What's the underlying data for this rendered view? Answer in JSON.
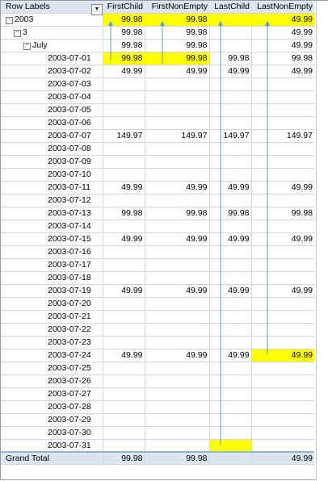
{
  "headers": {
    "row_labels": "Row Labels",
    "first_child": "FirstChild",
    "first_non_empty": "FirstNonEmpty",
    "last_child": "LastChild",
    "last_non_empty": "LastNonEmpty"
  },
  "year": {
    "label": "2003",
    "first_child": "99.98",
    "first_non_empty": "99.98",
    "last_child": "",
    "last_non_empty": "49.99"
  },
  "quarter": {
    "label": "3",
    "first_child": "99.98",
    "first_non_empty": "99.98",
    "last_child": "",
    "last_non_empty": "49.99"
  },
  "month": {
    "label": "July",
    "first_child": "99.98",
    "first_non_empty": "99.98",
    "last_child": "",
    "last_non_empty": "49.99"
  },
  "rows": [
    {
      "date": "2003-07-01",
      "fc": "99.98",
      "fne": "99.98",
      "lc": "99.98",
      "lne": "99.98"
    },
    {
      "date": "2003-07-02",
      "fc": "49.99",
      "fne": "49.99",
      "lc": "49.99",
      "lne": "49.99"
    },
    {
      "date": "2003-07-03",
      "fc": "",
      "fne": "",
      "lc": "",
      "lne": ""
    },
    {
      "date": "2003-07-04",
      "fc": "",
      "fne": "",
      "lc": "",
      "lne": ""
    },
    {
      "date": "2003-07-05",
      "fc": "",
      "fne": "",
      "lc": "",
      "lne": ""
    },
    {
      "date": "2003-07-06",
      "fc": "",
      "fne": "",
      "lc": "",
      "lne": ""
    },
    {
      "date": "2003-07-07",
      "fc": "149.97",
      "fne": "149.97",
      "lc": "149.97",
      "lne": "149.97"
    },
    {
      "date": "2003-07-08",
      "fc": "",
      "fne": "",
      "lc": "",
      "lne": ""
    },
    {
      "date": "2003-07-09",
      "fc": "",
      "fne": "",
      "lc": "",
      "lne": ""
    },
    {
      "date": "2003-07-10",
      "fc": "",
      "fne": "",
      "lc": "",
      "lne": ""
    },
    {
      "date": "2003-07-11",
      "fc": "49.99",
      "fne": "49.99",
      "lc": "49.99",
      "lne": "49.99"
    },
    {
      "date": "2003-07-12",
      "fc": "",
      "fne": "",
      "lc": "",
      "lne": ""
    },
    {
      "date": "2003-07-13",
      "fc": "99.98",
      "fne": "99.98",
      "lc": "99.98",
      "lne": "99.98"
    },
    {
      "date": "2003-07-14",
      "fc": "",
      "fne": "",
      "lc": "",
      "lne": ""
    },
    {
      "date": "2003-07-15",
      "fc": "49.99",
      "fne": "49.99",
      "lc": "49.99",
      "lne": "49.99"
    },
    {
      "date": "2003-07-16",
      "fc": "",
      "fne": "",
      "lc": "",
      "lne": ""
    },
    {
      "date": "2003-07-17",
      "fc": "",
      "fne": "",
      "lc": "",
      "lne": ""
    },
    {
      "date": "2003-07-18",
      "fc": "",
      "fne": "",
      "lc": "",
      "lne": ""
    },
    {
      "date": "2003-07-19",
      "fc": "49.99",
      "fne": "49.99",
      "lc": "49.99",
      "lne": "49.99"
    },
    {
      "date": "2003-07-20",
      "fc": "",
      "fne": "",
      "lc": "",
      "lne": ""
    },
    {
      "date": "2003-07-21",
      "fc": "",
      "fne": "",
      "lc": "",
      "lne": ""
    },
    {
      "date": "2003-07-22",
      "fc": "",
      "fne": "",
      "lc": "",
      "lne": ""
    },
    {
      "date": "2003-07-23",
      "fc": "",
      "fne": "",
      "lc": "",
      "lne": ""
    },
    {
      "date": "2003-07-24",
      "fc": "49.99",
      "fne": "49.99",
      "lc": "49.99",
      "lne": "49.99"
    },
    {
      "date": "2003-07-25",
      "fc": "",
      "fne": "",
      "lc": "",
      "lne": ""
    },
    {
      "date": "2003-07-26",
      "fc": "",
      "fne": "",
      "lc": "",
      "lne": ""
    },
    {
      "date": "2003-07-27",
      "fc": "",
      "fne": "",
      "lc": "",
      "lne": ""
    },
    {
      "date": "2003-07-28",
      "fc": "",
      "fne": "",
      "lc": "",
      "lne": ""
    },
    {
      "date": "2003-07-29",
      "fc": "",
      "fne": "",
      "lc": "",
      "lne": ""
    },
    {
      "date": "2003-07-30",
      "fc": "",
      "fne": "",
      "lc": "",
      "lne": ""
    },
    {
      "date": "2003-07-31",
      "fc": "",
      "fne": "",
      "lc": "",
      "lne": ""
    }
  ],
  "grand_total": {
    "label": "Grand Total",
    "first_child": "99.98",
    "first_non_empty": "99.98",
    "last_child": "",
    "last_non_empty": "49.99"
  },
  "colors": {
    "highlight": "#ffff00",
    "header_fill": "#dce6f1",
    "arrow": "#5b9bd5"
  },
  "icons": {
    "filter": "filter-icon",
    "collapse": "collapse-icon"
  }
}
